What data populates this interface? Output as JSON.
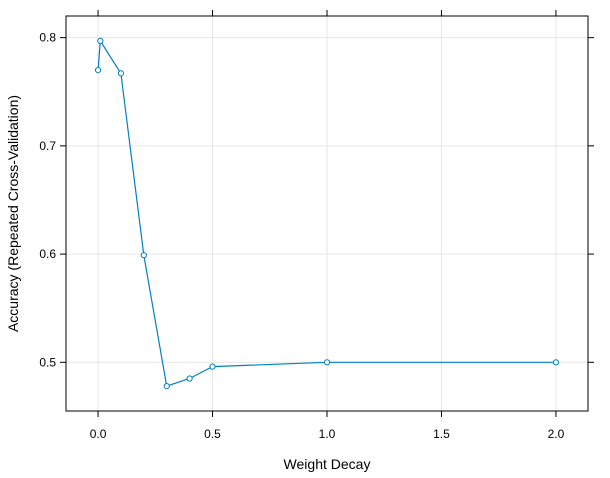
{
  "chart_data": {
    "type": "line",
    "xlabel": "Weight Decay",
    "ylabel": "Accuracy (Repeated Cross-Validation)",
    "xlim": [
      -0.14,
      2.14
    ],
    "ylim": [
      0.455,
      0.82
    ],
    "xticks": [
      0.0,
      0.5,
      1.0,
      1.5,
      2.0
    ],
    "xtick_labels": [
      "0.0",
      "0.5",
      "1.0",
      "1.5",
      "2.0"
    ],
    "yticks": [
      0.5,
      0.6,
      0.7,
      0.8
    ],
    "ytick_labels": [
      "0.5",
      "0.6",
      "0.7",
      "0.8"
    ],
    "grid": true,
    "series": [
      {
        "color": "#0080c0",
        "x": [
          0.0,
          0.01,
          0.1,
          0.2,
          0.3,
          0.4,
          0.5,
          1.0,
          2.0
        ],
        "y": [
          0.77,
          0.797,
          0.767,
          0.599,
          0.478,
          0.485,
          0.496,
          0.5,
          0.5
        ]
      }
    ]
  }
}
